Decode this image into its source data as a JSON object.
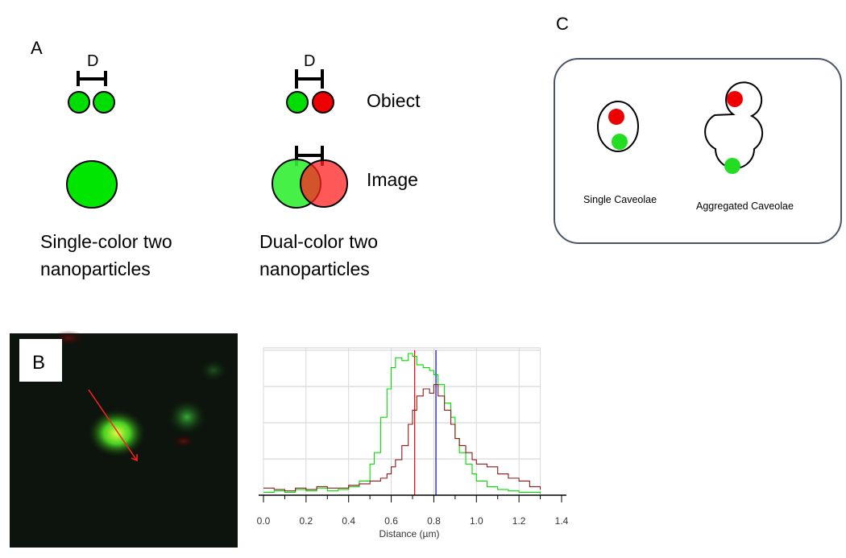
{
  "panel_a": {
    "letter": "A",
    "single": {
      "d_label": "D",
      "caption_line1": "Single-color two",
      "caption_line2": "nanoparticles"
    },
    "dual": {
      "d_label": "D",
      "caption_line1": "Dual-color two",
      "caption_line2": "nanoparticles"
    },
    "row_labels": {
      "object": "Obiect",
      "image": "Image"
    }
  },
  "panel_b": {
    "letter": "B"
  },
  "panel_c": {
    "letter": "C",
    "single_label": "Single Caveolae",
    "aggregated_label": "Aggregated Caveolae"
  },
  "colors": {
    "green": "#00dd00",
    "red": "#ff0000",
    "dark_green": "#2e7d1f",
    "dark_red": "#8b1a1a",
    "marker_red": "#ff0000",
    "marker_blue": "#0000cc"
  },
  "chart_data": {
    "type": "line",
    "xlabel": "Distance (µm)",
    "xlim": [
      0,
      1.4
    ],
    "x_ticks": [
      "0.0",
      "0.2",
      "0.4",
      "0.6",
      "0.8",
      "1.0",
      "1.2",
      "1.4"
    ],
    "markers": [
      {
        "color": "red",
        "x": 0.71
      },
      {
        "color": "blue",
        "x": 0.81
      }
    ],
    "series": [
      {
        "color": "green",
        "x": [
          0.0,
          0.05,
          0.1,
          0.15,
          0.2,
          0.25,
          0.3,
          0.35,
          0.4,
          0.45,
          0.5,
          0.52,
          0.55,
          0.58,
          0.6,
          0.62,
          0.65,
          0.68,
          0.7,
          0.72,
          0.75,
          0.78,
          0.8,
          0.82,
          0.85,
          0.88,
          0.9,
          0.92,
          0.95,
          0.98,
          1.0,
          1.05,
          1.1,
          1.15,
          1.2,
          1.25,
          1.3
        ],
        "y": [
          0.02,
          0.03,
          0.02,
          0.04,
          0.03,
          0.05,
          0.03,
          0.04,
          0.06,
          0.1,
          0.22,
          0.3,
          0.55,
          0.75,
          0.9,
          0.97,
          0.95,
          1.0,
          0.98,
          0.92,
          0.9,
          0.88,
          0.85,
          0.78,
          0.65,
          0.55,
          0.4,
          0.3,
          0.22,
          0.15,
          0.1,
          0.06,
          0.04,
          0.03,
          0.02,
          0.02,
          0.01
        ]
      },
      {
        "color": "dark_red",
        "x": [
          0.0,
          0.05,
          0.1,
          0.15,
          0.2,
          0.25,
          0.3,
          0.35,
          0.4,
          0.45,
          0.5,
          0.55,
          0.58,
          0.6,
          0.62,
          0.65,
          0.68,
          0.7,
          0.72,
          0.75,
          0.78,
          0.8,
          0.82,
          0.85,
          0.88,
          0.9,
          0.92,
          0.95,
          0.98,
          1.0,
          1.05,
          1.1,
          1.15,
          1.2,
          1.25,
          1.3
        ],
        "y": [
          0.05,
          0.04,
          0.03,
          0.05,
          0.04,
          0.06,
          0.05,
          0.05,
          0.07,
          0.08,
          0.1,
          0.12,
          0.15,
          0.2,
          0.25,
          0.35,
          0.5,
          0.6,
          0.7,
          0.75,
          0.72,
          0.78,
          0.7,
          0.6,
          0.5,
          0.4,
          0.35,
          0.3,
          0.25,
          0.22,
          0.2,
          0.15,
          0.12,
          0.1,
          0.06,
          0.04
        ]
      }
    ]
  }
}
